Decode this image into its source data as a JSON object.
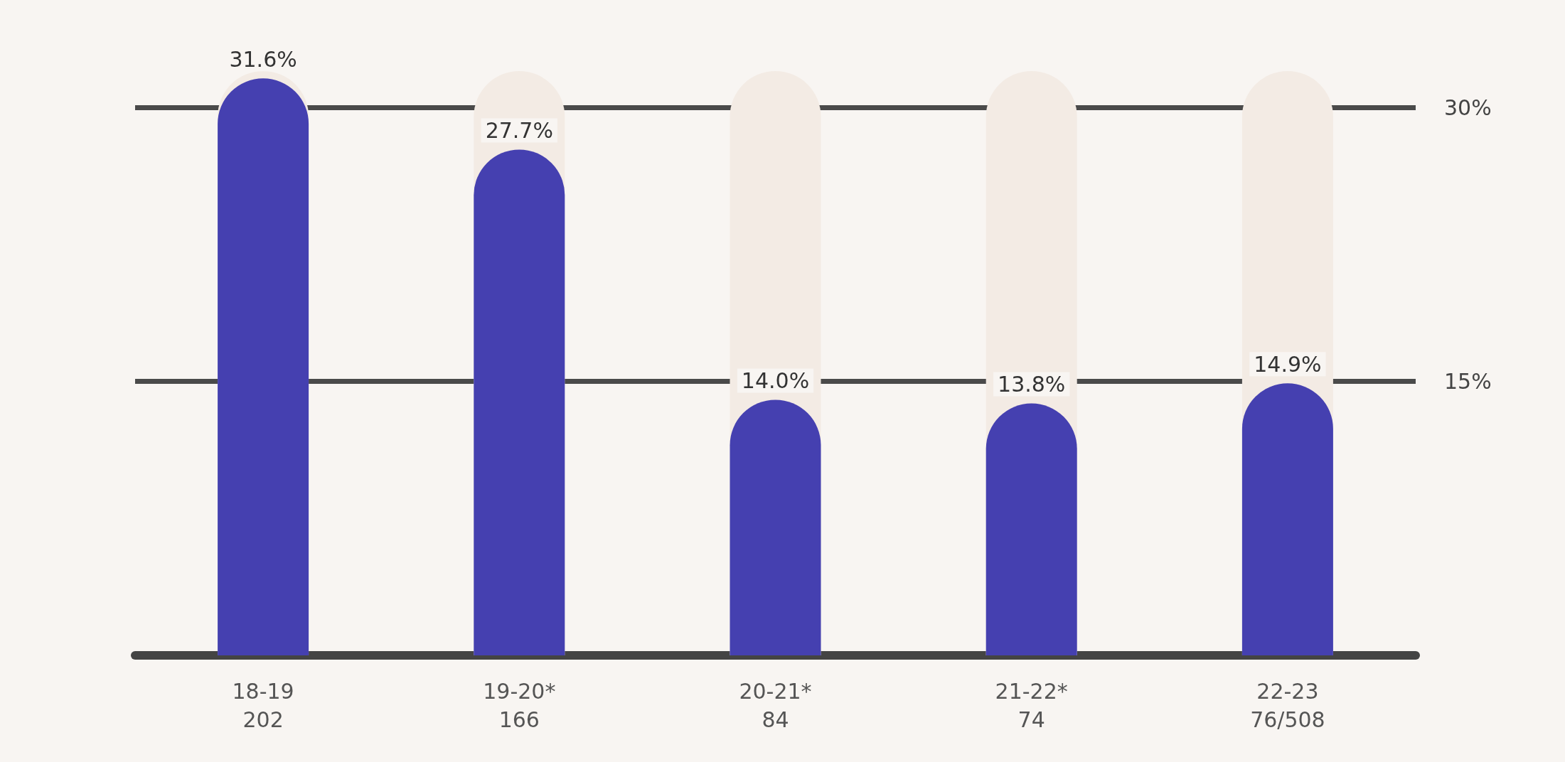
{
  "chart_data": {
    "type": "bar",
    "categories": [
      "18-19\n202",
      "19-20*\n166",
      "20-21*\n84",
      "21-22*\n74",
      "22-23\n76/508"
    ],
    "values": [
      31.6,
      27.7,
      14.0,
      13.8,
      14.9
    ],
    "value_labels": [
      "31.6%",
      "27.7%",
      "14.0%",
      "13.8%",
      "14.9%"
    ],
    "color": "#4540b0",
    "ylim": [
      0,
      32
    ],
    "ref_lines": [
      {
        "axis": "y",
        "value": 30,
        "label": "30%",
        "color": "#4a4a4a"
      },
      {
        "axis": "y",
        "value": 15,
        "label": "15%",
        "color": "#4a4a4a"
      }
    ],
    "grid": false
  }
}
